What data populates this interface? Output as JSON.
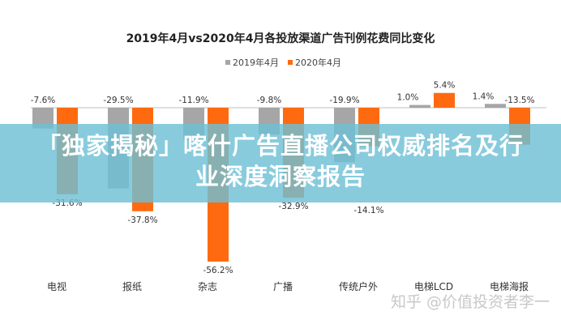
{
  "chart_data": {
    "type": "bar",
    "title": "2019年4月vs2020年4月各投放渠道广告刊例花费同比变化",
    "categories": [
      "电视",
      "报纸",
      "杂志",
      "广播",
      "传统户外",
      "电梯LCD",
      "电梯海报"
    ],
    "series": [
      {
        "name": "2019年4月",
        "color": "#a6a6a6",
        "values": [
          -7.6,
          -29.5,
          -11.9,
          -9.8,
          -19.9,
          1.0,
          1.4
        ]
      },
      {
        "name": "2020年4月",
        "color": "#ff6a10",
        "values": [
          -31.6,
          -37.8,
          -56.2,
          -32.9,
          -14.1,
          5.4,
          -13.5
        ]
      }
    ],
    "data_labels": [
      [
        "-7.6%",
        "-29.5%",
        "-11.9%",
        "-9.8%",
        "-19.9%",
        "1.0%",
        "1.4%"
      ],
      [
        "-31.6%",
        "-37.8%",
        "-56.2%",
        "-32.9%",
        "-14.1%",
        "5.4%",
        "-13.5%"
      ]
    ],
    "xlabel": "",
    "ylabel": "",
    "ylim": [
      -60,
      10
    ],
    "grid": false,
    "legend": "top-center"
  },
  "banner": {
    "line1": "「独家揭秘」喀什广告直播公司权威排名及行",
    "line2": "业深度洞察报告",
    "color": "#6ec0d6"
  },
  "watermark": "知乎 @价值投资者李一"
}
